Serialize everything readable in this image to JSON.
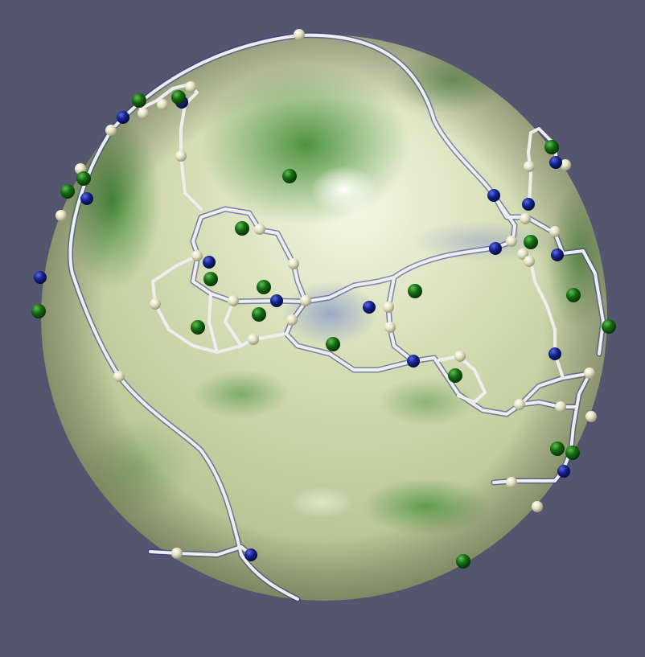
{
  "scene": {
    "description_name": "sphere-topology-visualization",
    "background_color": "#545670",
    "colors": {
      "surface_light": "#f2f5df",
      "surface_mid": "#c9d3a6",
      "surface_green": "#5d9a44",
      "surface_dark_green": "#2f7a2a",
      "valley_blue": "#22307a",
      "ridge_white": "#eeeeee",
      "node_cream": "#e8e6c6",
      "node_blue": "#13228e",
      "node_green": "#166b14"
    },
    "node_counts": {
      "cream": 47,
      "blue": 19,
      "green": 22
    }
  }
}
